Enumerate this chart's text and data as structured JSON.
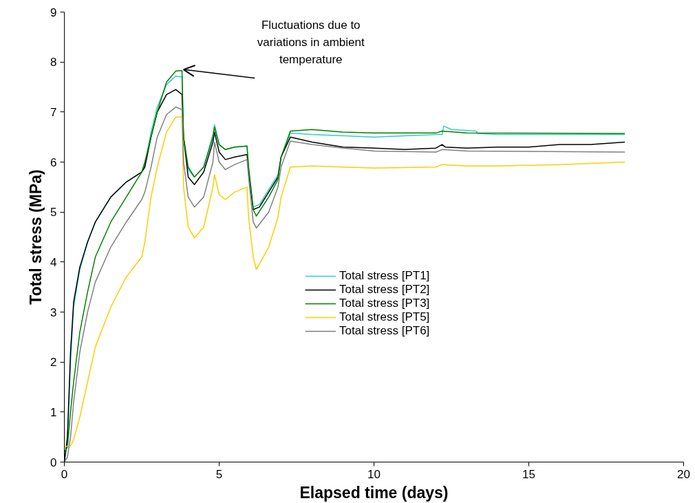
{
  "chart_data": {
    "type": "line",
    "xlabel": "Elapsed time (days)",
    "ylabel": "Total stress (MPa)",
    "xlim": [
      0,
      20
    ],
    "xticks": [
      0,
      5,
      10,
      15,
      20
    ],
    "ylim": [
      0,
      9
    ],
    "yticks": [
      0,
      1,
      2,
      3,
      4,
      5,
      6,
      7,
      8,
      9
    ],
    "grid": false,
    "legend": "center",
    "marker": "none",
    "line_style": "solid",
    "annotations": [
      {
        "text": "Fluctuations due to variations in ambient temperature",
        "x": 3.85,
        "y": 7.85
      }
    ],
    "series": [
      {
        "name": "Total stress [PT1]",
        "color": "#33cccc",
        "x": [
          0,
          0.1,
          0.2,
          0.3,
          0.5,
          0.75,
          1.0,
          1.5,
          2.0,
          2.5,
          2.6,
          2.8,
          3.0,
          3.3,
          3.6,
          3.8,
          3.85,
          4.0,
          4.2,
          4.5,
          4.8,
          4.85,
          5.0,
          5.2,
          5.5,
          5.9,
          5.95,
          6.1,
          6.3,
          6.6,
          6.9,
          7.0,
          7.3,
          8,
          10,
          12,
          12.2,
          12.25,
          12.5,
          13.3,
          13.35,
          14,
          16,
          18.1
        ],
        "values": [
          0,
          0.4,
          2.0,
          3.1,
          3.85,
          4.4,
          4.8,
          5.3,
          5.6,
          5.8,
          5.95,
          6.6,
          7.1,
          7.55,
          7.72,
          7.7,
          6.5,
          5.85,
          5.7,
          5.9,
          6.55,
          6.75,
          6.35,
          6.25,
          6.3,
          6.32,
          5.9,
          5.1,
          5.15,
          5.45,
          5.75,
          6.1,
          6.58,
          6.55,
          6.5,
          6.55,
          6.55,
          6.72,
          6.65,
          6.62,
          6.57,
          6.55,
          6.55,
          6.55
        ]
      },
      {
        "name": "Total stress [PT2]",
        "color": "#000000",
        "x": [
          0,
          0.1,
          0.2,
          0.3,
          0.5,
          0.75,
          1.0,
          1.5,
          2.0,
          2.5,
          2.6,
          2.8,
          3.0,
          3.3,
          3.6,
          3.8,
          3.85,
          4.0,
          4.2,
          4.5,
          4.8,
          4.85,
          5.0,
          5.2,
          5.5,
          5.9,
          5.95,
          6.1,
          6.3,
          6.6,
          6.9,
          7.0,
          7.3,
          8,
          9,
          10,
          11,
          12,
          12.2,
          12.3,
          13,
          14,
          15,
          16,
          17,
          18.1
        ],
        "values": [
          0,
          0.5,
          2.2,
          3.2,
          3.9,
          4.4,
          4.8,
          5.3,
          5.6,
          5.8,
          5.9,
          6.5,
          7.0,
          7.35,
          7.45,
          7.35,
          6.5,
          5.7,
          5.55,
          5.8,
          6.4,
          6.6,
          6.2,
          6.05,
          6.1,
          6.15,
          5.8,
          5.05,
          5.1,
          5.4,
          5.7,
          6.1,
          6.5,
          6.4,
          6.3,
          6.28,
          6.25,
          6.28,
          6.35,
          6.3,
          6.28,
          6.3,
          6.3,
          6.35,
          6.35,
          6.4
        ]
      },
      {
        "name": "Total stress [PT3]",
        "color": "#008000",
        "x": [
          0,
          0.1,
          0.2,
          0.3,
          0.5,
          0.75,
          1.0,
          1.5,
          2.0,
          2.5,
          2.6,
          2.8,
          3.0,
          3.3,
          3.6,
          3.8,
          3.85,
          4.0,
          4.2,
          4.5,
          4.8,
          4.85,
          5.0,
          5.2,
          5.5,
          5.9,
          5.95,
          6.1,
          6.2,
          6.6,
          6.9,
          7.0,
          7.3,
          8,
          9,
          10,
          12,
          12.2,
          13,
          18.1
        ],
        "values": [
          0.2,
          0.3,
          1.0,
          1.6,
          2.6,
          3.4,
          4.1,
          4.8,
          5.3,
          5.8,
          6.0,
          6.5,
          7.0,
          7.6,
          7.82,
          7.83,
          6.5,
          5.9,
          5.7,
          5.9,
          6.5,
          6.7,
          6.35,
          6.25,
          6.3,
          6.32,
          5.9,
          5.05,
          4.92,
          5.3,
          5.65,
          6.1,
          6.62,
          6.65,
          6.6,
          6.58,
          6.58,
          6.62,
          6.58,
          6.57
        ]
      },
      {
        "name": "Total stress [PT5]",
        "color": "#ffcc00",
        "x": [
          0,
          0.1,
          0.2,
          0.3,
          0.5,
          0.75,
          1.0,
          1.5,
          2.0,
          2.5,
          2.6,
          2.8,
          3.0,
          3.3,
          3.6,
          3.8,
          3.85,
          4.0,
          4.2,
          4.5,
          4.8,
          4.85,
          5.0,
          5.2,
          5.5,
          5.9,
          5.95,
          6.1,
          6.2,
          6.6,
          6.9,
          7.0,
          7.3,
          8,
          9,
          10,
          12,
          12.2,
          13,
          14,
          16,
          18.1
        ],
        "values": [
          0.3,
          0.32,
          0.32,
          0.45,
          0.9,
          1.6,
          2.3,
          3.1,
          3.7,
          4.1,
          4.4,
          5.3,
          5.9,
          6.6,
          6.9,
          6.9,
          5.5,
          4.7,
          4.48,
          4.7,
          5.5,
          5.75,
          5.35,
          5.25,
          5.4,
          5.5,
          4.9,
          4.1,
          3.85,
          4.3,
          4.9,
          5.3,
          5.9,
          5.92,
          5.9,
          5.88,
          5.9,
          5.95,
          5.92,
          5.92,
          5.95,
          6.0
        ]
      },
      {
        "name": "Total stress [PT6]",
        "color": "#808080",
        "x": [
          0,
          0.1,
          0.2,
          0.3,
          0.5,
          0.75,
          1.0,
          1.5,
          2.0,
          2.5,
          2.6,
          2.8,
          3.0,
          3.3,
          3.6,
          3.8,
          3.85,
          4.0,
          4.2,
          4.5,
          4.8,
          4.85,
          5.0,
          5.2,
          5.5,
          5.9,
          5.95,
          6.1,
          6.2,
          6.6,
          6.9,
          7.0,
          7.3,
          8,
          9,
          10,
          12,
          12.2,
          13,
          18.1
        ],
        "values": [
          0,
          0.1,
          0.5,
          1.2,
          2.2,
          3.0,
          3.6,
          4.3,
          4.8,
          5.25,
          5.4,
          5.9,
          6.5,
          6.95,
          7.1,
          7.05,
          6.0,
          5.3,
          5.1,
          5.3,
          6.0,
          6.4,
          6.0,
          5.85,
          5.95,
          6.05,
          5.7,
          4.8,
          4.68,
          5.0,
          5.5,
          5.9,
          6.42,
          6.35,
          6.28,
          6.22,
          6.2,
          6.25,
          6.22,
          6.2
        ]
      }
    ]
  }
}
